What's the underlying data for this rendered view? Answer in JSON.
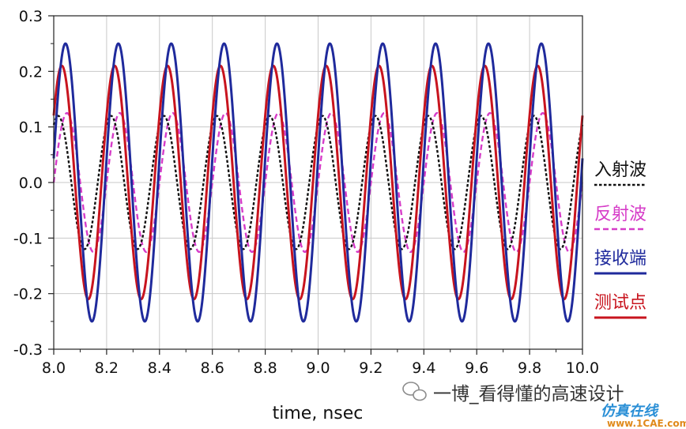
{
  "chart_data": {
    "type": "line",
    "title": "",
    "xlabel": "time, nsec",
    "ylabel": "",
    "xlim": [
      8.0,
      10.0
    ],
    "ylim": [
      -0.3,
      0.3
    ],
    "grid": true,
    "legend_position": "right",
    "x_ticks": [
      8.0,
      8.2,
      8.4,
      8.6,
      8.8,
      9.0,
      9.2,
      9.4,
      9.6,
      9.8,
      10.0
    ],
    "x_tick_labels": [
      "8.0",
      "8.2",
      "8.4",
      "8.6",
      "8.8",
      "9.0",
      "9.2",
      "9.4",
      "9.6",
      "9.8",
      "10.0"
    ],
    "y_ticks": [
      -0.3,
      -0.2,
      -0.1,
      0.0,
      0.1,
      0.2,
      0.3
    ],
    "y_tick_labels": [
      "-0.3",
      "-0.2",
      "-0.1",
      "0.0",
      "0.1",
      "0.2",
      "0.3"
    ],
    "frequency_ghz": 5,
    "series": [
      {
        "name": "入射波",
        "color": "#111111",
        "style": "dotted",
        "amplitude": 0.12,
        "phase_deg": 60,
        "peaks_x": [
          8.02,
          8.22,
          8.42,
          8.62,
          8.82,
          9.02,
          9.22,
          9.42,
          9.62,
          9.82
        ],
        "troughs_x": [
          8.12,
          8.32,
          8.52,
          8.72,
          8.92,
          9.12,
          9.32,
          9.52,
          9.72,
          9.92
        ],
        "value_at_end": 0.105
      },
      {
        "name": "反射波",
        "color": "#d63cc8",
        "style": "dashed",
        "amplitude": 0.125,
        "phase_deg": 0,
        "peaks_x": [
          8.05,
          8.25,
          8.45,
          8.65,
          8.85,
          9.05,
          9.25,
          9.45,
          9.65,
          9.85
        ],
        "troughs_x": [
          8.15,
          8.35,
          8.55,
          8.75,
          8.95,
          9.15,
          9.35,
          9.55,
          9.75,
          9.95
        ],
        "value_at_start": 0.0
      },
      {
        "name": "接收端",
        "color": "#1f2a9c",
        "style": "solid",
        "amplitude": 0.25,
        "phase_deg": 10,
        "peaks_x": [
          8.05,
          8.25,
          8.45,
          8.65,
          8.85,
          9.05,
          9.25,
          9.45,
          9.65,
          9.85
        ],
        "troughs_x": [
          8.15,
          8.35,
          8.55,
          8.75,
          8.95,
          9.15,
          9.35,
          9.55,
          9.75,
          9.95
        ],
        "value_at_start": 0.04
      },
      {
        "name": "测试点",
        "color": "#c8141e",
        "style": "solid",
        "amplitude": 0.21,
        "phase_deg": 35,
        "peaks_x": [
          8.035,
          8.235,
          8.435,
          8.635,
          8.835,
          9.035,
          9.235,
          9.435,
          9.635,
          9.835
        ],
        "troughs_x": [
          8.135,
          8.335,
          8.535,
          8.735,
          8.935,
          9.135,
          9.335,
          9.535,
          9.735,
          9.935
        ],
        "value_at_start": 0.12
      }
    ]
  },
  "watermark": {
    "caption": "一博_看得懂的高速设计",
    "logo_line1": "仿真在线",
    "logo_line2": "www.1CAE.com"
  }
}
